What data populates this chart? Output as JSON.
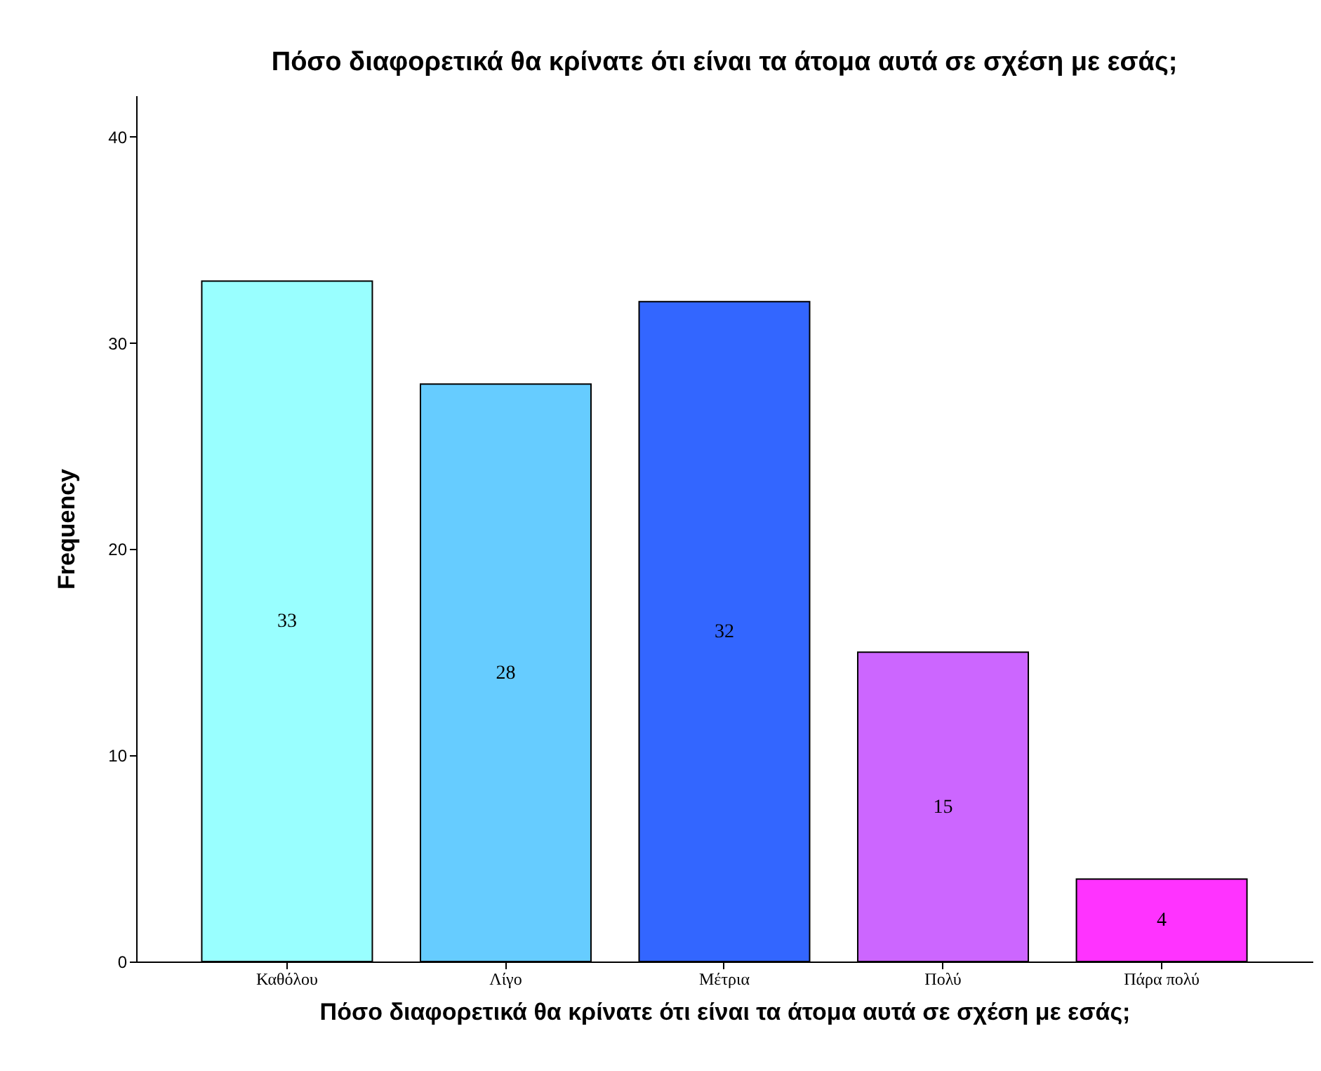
{
  "chart_data": {
    "type": "bar",
    "title": "Πόσο διαφορετικά θα κρίνατε ότι είναι τα άτομα αυτά σε σχέση με εσάς;",
    "xlabel": "Πόσο διαφορετικά θα κρίνατε ότι είναι τα άτομα αυτά σε σχέση με εσάς;",
    "ylabel": "Frequency",
    "categories": [
      "Καθόλου",
      "Λίγο",
      "Μέτρια",
      "Πολύ",
      "Πάρα πολύ"
    ],
    "values": [
      33,
      28,
      32,
      15,
      4
    ],
    "colors": [
      "#99ffff",
      "#66ccff",
      "#3366ff",
      "#cc66ff",
      "#ff33ff"
    ],
    "ylim": [
      0,
      42
    ],
    "yticks": [
      0,
      10,
      20,
      30,
      40
    ],
    "grid": false,
    "data_labels": true
  }
}
